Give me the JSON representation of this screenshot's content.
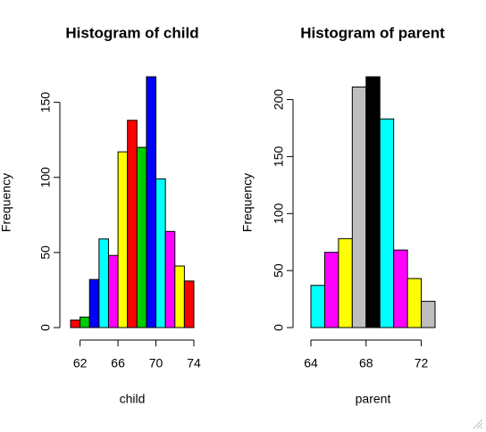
{
  "chart_data": [
    {
      "type": "histogram",
      "title": "Histogram of child",
      "x_label": "child",
      "y_label": "Frequency",
      "bins": [
        61,
        62,
        63,
        64,
        65,
        66,
        67,
        68,
        69,
        70,
        71,
        72,
        73,
        74
      ],
      "values": [
        5,
        7,
        32,
        59,
        48,
        117,
        138,
        120,
        167,
        99,
        64,
        41,
        31
      ],
      "colors": [
        "#ff0000",
        "#00cd00",
        "#0000ff",
        "#00ffff",
        "#ff00ff",
        "#ffff00",
        "#ff0000",
        "#00cd00",
        "#0000ff",
        "#00ffff",
        "#ff00ff",
        "#ffff00",
        "#ff0000"
      ],
      "xlim": [
        61,
        74
      ],
      "xticks": [
        62,
        66,
        70,
        74
      ],
      "ylim": [
        0,
        167
      ],
      "yticks": [
        0,
        50,
        100,
        150
      ]
    },
    {
      "type": "histogram",
      "title": "Histogram of parent",
      "x_label": "parent",
      "y_label": "Frequency",
      "bins": [
        64,
        65,
        66,
        67,
        68,
        69,
        70,
        71,
        72,
        73
      ],
      "values": [
        37,
        66,
        78,
        211,
        220,
        183,
        68,
        43,
        23
      ],
      "colors": [
        "#00ffff",
        "#ff00ff",
        "#ffff00",
        "#bebebe",
        "#000000",
        "#00ffff",
        "#ff00ff",
        "#ffff00",
        "#bebebe"
      ],
      "xlim": [
        64,
        73
      ],
      "xticks": [
        64,
        68,
        72
      ],
      "ylim": [
        0,
        220
      ],
      "yticks": [
        0,
        50,
        100,
        150,
        200
      ]
    }
  ]
}
